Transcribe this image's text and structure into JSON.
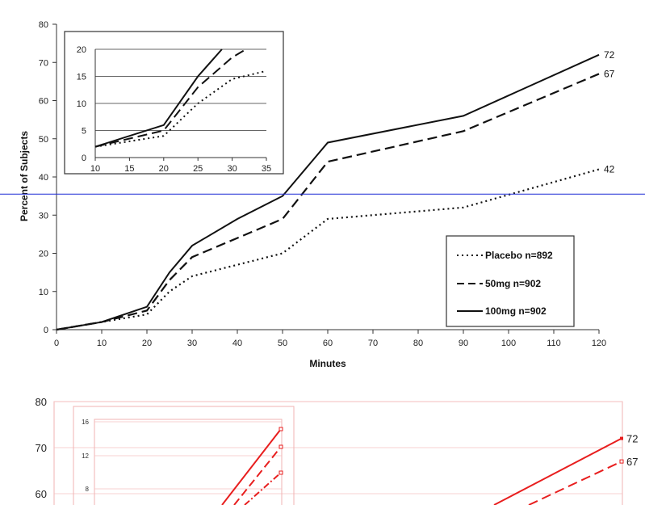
{
  "chart_data": [
    {
      "type": "line",
      "xlabel": "Minutes",
      "ylabel": "Percent of Subjects",
      "xlim": [
        0,
        120
      ],
      "ylim": [
        0,
        80
      ],
      "x_ticks": [
        "0",
        "10",
        "20",
        "30",
        "40",
        "50",
        "60",
        "70",
        "80",
        "90",
        "100",
        "110",
        "120"
      ],
      "y_ticks": [
        "0",
        "10",
        "20",
        "30",
        "40",
        "50",
        "60",
        "70",
        "80"
      ],
      "legend_position": "bottom-right",
      "reference_line": {
        "y": 35.5,
        "color": "#1f2bd6"
      },
      "x": [
        0,
        10,
        20,
        25,
        30,
        40,
        50,
        60,
        90,
        120
      ],
      "series": [
        {
          "name": "Placebo n=892",
          "style": "dotted",
          "values": [
            0,
            2,
            4,
            10,
            14,
            17,
            20,
            29,
            32,
            42
          ],
          "end_label": "42"
        },
        {
          "name": "50mg n=902",
          "style": "dashed",
          "values": [
            0,
            2,
            5,
            13,
            19,
            24,
            29,
            44,
            52,
            67
          ],
          "end_label": "67"
        },
        {
          "name": "100mg n=902",
          "style": "solid",
          "values": [
            0,
            2,
            6,
            15,
            22,
            29,
            35,
            49,
            56,
            72
          ],
          "end_label": "72"
        }
      ],
      "inset": {
        "xlim": [
          10,
          35
        ],
        "ylim": [
          0,
          20
        ],
        "x_ticks": [
          "10",
          "15",
          "20",
          "25",
          "30",
          "35"
        ],
        "y_ticks": [
          "0",
          "5",
          "10",
          "15",
          "20"
        ],
        "series": [
          {
            "name": "Placebo n=892",
            "style": "dotted",
            "x": [
              10,
              20,
              25,
              30,
              35
            ],
            "values": [
              2,
              4,
              10,
              14.5,
              16
            ]
          },
          {
            "name": "50mg n=902",
            "style": "dashed",
            "x": [
              10,
              20,
              25,
              30,
              32
            ],
            "values": [
              2,
              5,
              13,
              18.5,
              20
            ]
          },
          {
            "name": "100mg n=902",
            "style": "solid",
            "x": [
              10,
              20,
              25,
              28.5
            ],
            "values": [
              2,
              6,
              15,
              20
            ]
          }
        ]
      }
    },
    {
      "type": "line",
      "color": "#e81e1e",
      "ylim": [
        55,
        80
      ],
      "y_ticks": [
        "60",
        "70",
        "80"
      ],
      "end_labels": [
        "72",
        "67"
      ],
      "inset": {
        "y_ticks": [
          "8",
          "12",
          "16"
        ]
      }
    }
  ]
}
